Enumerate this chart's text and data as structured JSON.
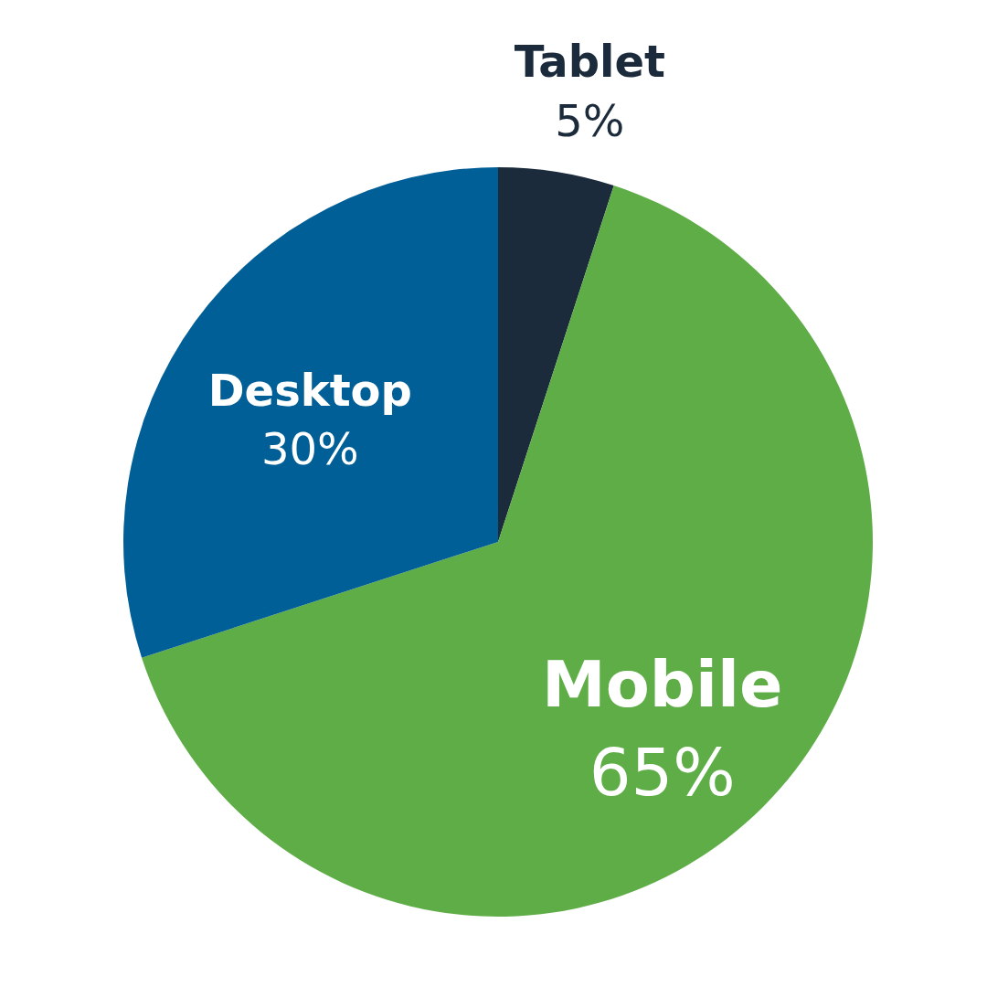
{
  "chart_data": {
    "type": "pie",
    "categories": [
      "Tablet",
      "Mobile",
      "Desktop"
    ],
    "values": [
      5,
      65,
      30
    ],
    "colors": [
      "#1c2b3c",
      "#5fad47",
      "#005f96"
    ],
    "value_labels": [
      "5%",
      "65%",
      "30%"
    ]
  }
}
